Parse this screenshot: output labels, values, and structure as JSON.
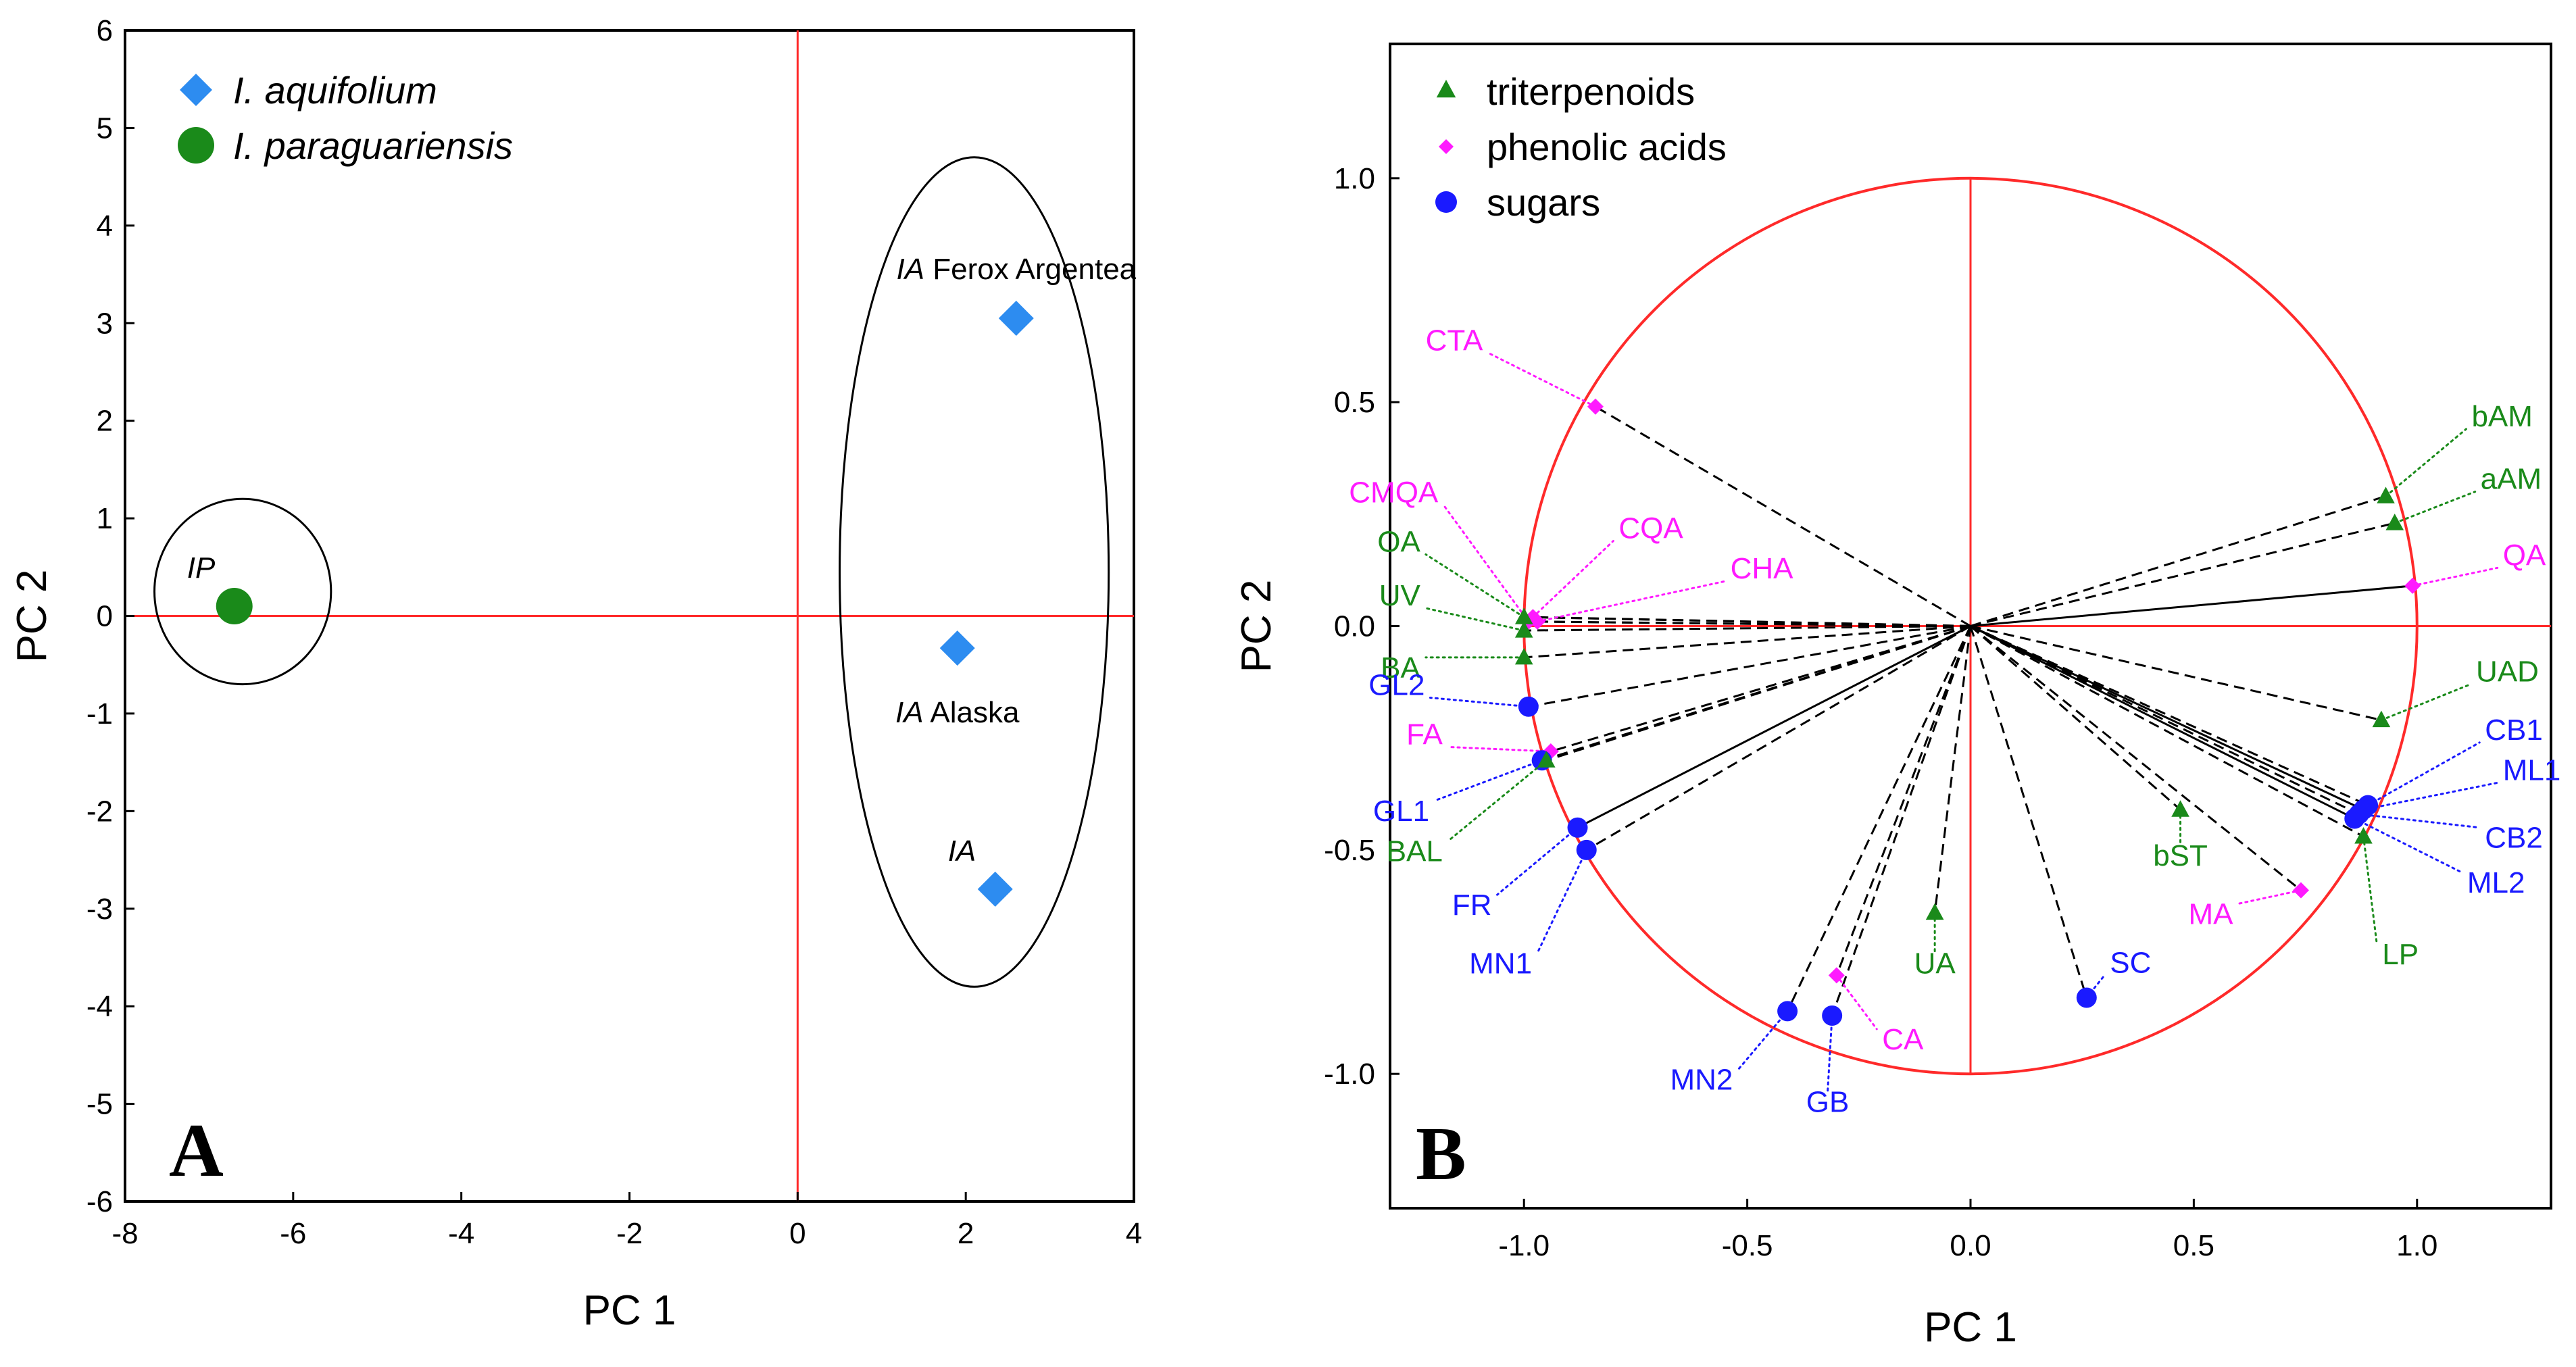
{
  "colors": {
    "refline": "#ff2a2a",
    "circle": "#ff2a2a",
    "aquifolium": "#2d8cf0",
    "paraguariensis": "#1a8a1a",
    "triterpenoids": "#1a8a1a",
    "phenolic": "#ff1aff",
    "sugars": "#1a1aff",
    "ellipse": "#000000",
    "frame": "#000000"
  },
  "chart_data": [
    {
      "panel": "A",
      "type": "scatter",
      "xlabel": "PC 1",
      "ylabel": "PC 2",
      "xlim": [
        -8,
        4
      ],
      "ylim": [
        -6,
        6
      ],
      "xticks": [
        -8,
        -6,
        -4,
        -2,
        0,
        2,
        4
      ],
      "yticks": [
        -6,
        -5,
        -4,
        -3,
        -2,
        -1,
        0,
        1,
        2,
        3,
        4,
        5,
        6
      ],
      "legend": {
        "position": "top-left",
        "entries": [
          {
            "name": "I. aquifolium",
            "marker": "diamond",
            "color_key": "aquifolium"
          },
          {
            "name": "I. paraguariensis",
            "marker": "circle",
            "color_key": "paraguariensis"
          }
        ]
      },
      "series": [
        {
          "name": "I. aquifolium",
          "marker": "diamond",
          "color_key": "aquifolium",
          "points": [
            {
              "x": 2.6,
              "y": 3.05,
              "italic": "IA",
              "text": " Ferox Argentea",
              "label_pos": "above"
            },
            {
              "x": 1.9,
              "y": -0.33,
              "italic": "IA",
              "text": " Alaska",
              "label_pos": "below"
            },
            {
              "x": 2.35,
              "y": -2.8,
              "italic": "IA",
              "text": "",
              "label_pos": "above-left"
            }
          ]
        },
        {
          "name": "I. paraguariensis",
          "marker": "circle",
          "color_key": "paraguariensis",
          "points": [
            {
              "x": -6.7,
              "y": 0.1,
              "italic": "IP",
              "text": "",
              "label_pos": "above-left"
            }
          ]
        }
      ],
      "groupings": [
        {
          "shape": "ellipse",
          "cx": 2.1,
          "cy": 0.45,
          "rx": 1.6,
          "ry": 4.25
        },
        {
          "shape": "ellipse",
          "cx": -6.6,
          "cy": 0.25,
          "rx": 1.05,
          "ry": 0.95
        }
      ],
      "reference_lines": {
        "x": 0,
        "y": 0
      },
      "panel_letter": "A"
    },
    {
      "panel": "B",
      "type": "scatter",
      "subtype": "correlation-circle",
      "xlabel": "PC 1",
      "ylabel": "PC 2",
      "xlim": [
        -1.3,
        1.3
      ],
      "ylim": [
        -1.3,
        1.3
      ],
      "xticks": [
        -1.0,
        -0.5,
        0.0,
        0.5,
        1.0
      ],
      "yticks": [
        -1.0,
        -0.5,
        0.0,
        0.5,
        1.0
      ],
      "tick_labels_x": [
        "-1.0",
        "-0.5",
        "0.0",
        "0.5",
        "1.0"
      ],
      "tick_labels_y": [
        "-1.0",
        "-0.5",
        "0.0",
        "0.5",
        "1.0"
      ],
      "unit_circle_radius": 1.0,
      "reference_lines": {
        "x": 0,
        "y": 0
      },
      "legend": {
        "position": "top-left",
        "entries": [
          {
            "name": "triterpenoids",
            "marker": "triangle",
            "color_key": "triterpenoids"
          },
          {
            "name": "phenolic acids",
            "marker": "diamond",
            "color_key": "phenolic"
          },
          {
            "name": "sugars",
            "marker": "circle",
            "color_key": "sugars"
          }
        ]
      },
      "variables": [
        {
          "name": "CTA",
          "group": "phenolic acids",
          "x": -0.84,
          "y": 0.49,
          "lx": -1.08,
          "ly": 0.61,
          "vector": "dashed"
        },
        {
          "name": "bAM",
          "group": "triterpenoids",
          "x": 0.93,
          "y": 0.29,
          "lx": 1.11,
          "ly": 0.44,
          "vector": "dashed"
        },
        {
          "name": "aAM",
          "group": "triterpenoids",
          "x": 0.95,
          "y": 0.23,
          "lx": 1.13,
          "ly": 0.3,
          "vector": "dashed"
        },
        {
          "name": "QA",
          "group": "phenolic acids",
          "x": 0.99,
          "y": 0.09,
          "lx": 1.18,
          "ly": 0.13,
          "vector": "solid"
        },
        {
          "name": "CMQA",
          "group": "phenolic acids",
          "x": -0.99,
          "y": 0.01,
          "lx": -1.18,
          "ly": 0.27,
          "vector": "dashed"
        },
        {
          "name": "CQA",
          "group": "phenolic acids",
          "x": -0.98,
          "y": 0.02,
          "lx": -0.8,
          "ly": 0.19,
          "vector": "dashed"
        },
        {
          "name": "CHA",
          "group": "phenolic acids",
          "x": -0.97,
          "y": 0.01,
          "lx": -0.55,
          "ly": 0.1,
          "vector": "dashed"
        },
        {
          "name": "OA",
          "group": "triterpenoids",
          "x": -1.0,
          "y": 0.02,
          "lx": -1.22,
          "ly": 0.16,
          "vector": "dashed"
        },
        {
          "name": "UV",
          "group": "triterpenoids",
          "x": -1.0,
          "y": -0.01,
          "lx": -1.22,
          "ly": 0.04,
          "vector": "dashed"
        },
        {
          "name": "BA",
          "group": "triterpenoids",
          "x": -1.0,
          "y": -0.07,
          "lx": -1.22,
          "ly": -0.07,
          "vector": "dashed"
        },
        {
          "name": "UAD",
          "group": "triterpenoids",
          "x": 0.92,
          "y": -0.21,
          "lx": 1.12,
          "ly": -0.13,
          "vector": "dashed"
        },
        {
          "name": "GL2",
          "group": "sugars",
          "x": -0.99,
          "y": -0.18,
          "lx": -1.21,
          "ly": -0.16,
          "vector": "dashed"
        },
        {
          "name": "CB1",
          "group": "sugars",
          "x": 0.89,
          "y": -0.4,
          "lx": 1.14,
          "ly": -0.26,
          "vector": "dashed"
        },
        {
          "name": "ML1",
          "group": "sugars",
          "x": 0.88,
          "y": -0.41,
          "lx": 1.18,
          "ly": -0.35,
          "vector": "solid"
        },
        {
          "name": "FA",
          "group": "phenolic acids",
          "x": -0.94,
          "y": -0.28,
          "lx": -1.17,
          "ly": -0.27,
          "vector": "dashed"
        },
        {
          "name": "CB2",
          "group": "sugars",
          "x": 0.87,
          "y": -0.42,
          "lx": 1.14,
          "ly": -0.45,
          "vector": "dashed"
        },
        {
          "name": "ML2",
          "group": "sugars",
          "x": 0.86,
          "y": -0.43,
          "lx": 1.1,
          "ly": -0.55,
          "vector": "solid"
        },
        {
          "name": "GL1",
          "group": "sugars",
          "x": -0.96,
          "y": -0.3,
          "lx": -1.2,
          "ly": -0.39,
          "vector": "dashed"
        },
        {
          "name": "BAL",
          "group": "triterpenoids",
          "x": -0.95,
          "y": -0.3,
          "lx": -1.17,
          "ly": -0.48,
          "vector": "dashed"
        },
        {
          "name": "bST",
          "group": "triterpenoids",
          "x": 0.47,
          "y": -0.41,
          "lx": 0.47,
          "ly": -0.49,
          "vector": "dashed"
        },
        {
          "name": "MA",
          "group": "phenolic acids",
          "x": 0.74,
          "y": -0.59,
          "lx": 0.6,
          "ly": -0.62,
          "vector": "dashed"
        },
        {
          "name": "LP",
          "group": "triterpenoids",
          "x": 0.88,
          "y": -0.47,
          "lx": 0.91,
          "ly": -0.71,
          "vector": "dashed"
        },
        {
          "name": "FR",
          "group": "sugars",
          "x": -0.88,
          "y": -0.45,
          "lx": -1.06,
          "ly": -0.6,
          "vector": "solid"
        },
        {
          "name": "MN1",
          "group": "sugars",
          "x": -0.86,
          "y": -0.5,
          "lx": -0.97,
          "ly": -0.73,
          "vector": "dashed"
        },
        {
          "name": "UA",
          "group": "triterpenoids",
          "x": -0.08,
          "y": -0.64,
          "lx": -0.08,
          "ly": -0.73,
          "vector": "dashed"
        },
        {
          "name": "SC",
          "group": "sugars",
          "x": 0.26,
          "y": -0.83,
          "lx": 0.3,
          "ly": -0.78,
          "vector": "dashed"
        },
        {
          "name": "CA",
          "group": "phenolic acids",
          "x": -0.3,
          "y": -0.78,
          "lx": -0.21,
          "ly": -0.9,
          "vector": "dashed"
        },
        {
          "name": "MN2",
          "group": "sugars",
          "x": -0.41,
          "y": -0.86,
          "lx": -0.52,
          "ly": -0.99,
          "vector": "dashed"
        },
        {
          "name": "GB",
          "group": "sugars",
          "x": -0.31,
          "y": -0.87,
          "lx": -0.32,
          "ly": -1.04,
          "vector": "dashed"
        }
      ],
      "panel_letter": "B"
    }
  ]
}
